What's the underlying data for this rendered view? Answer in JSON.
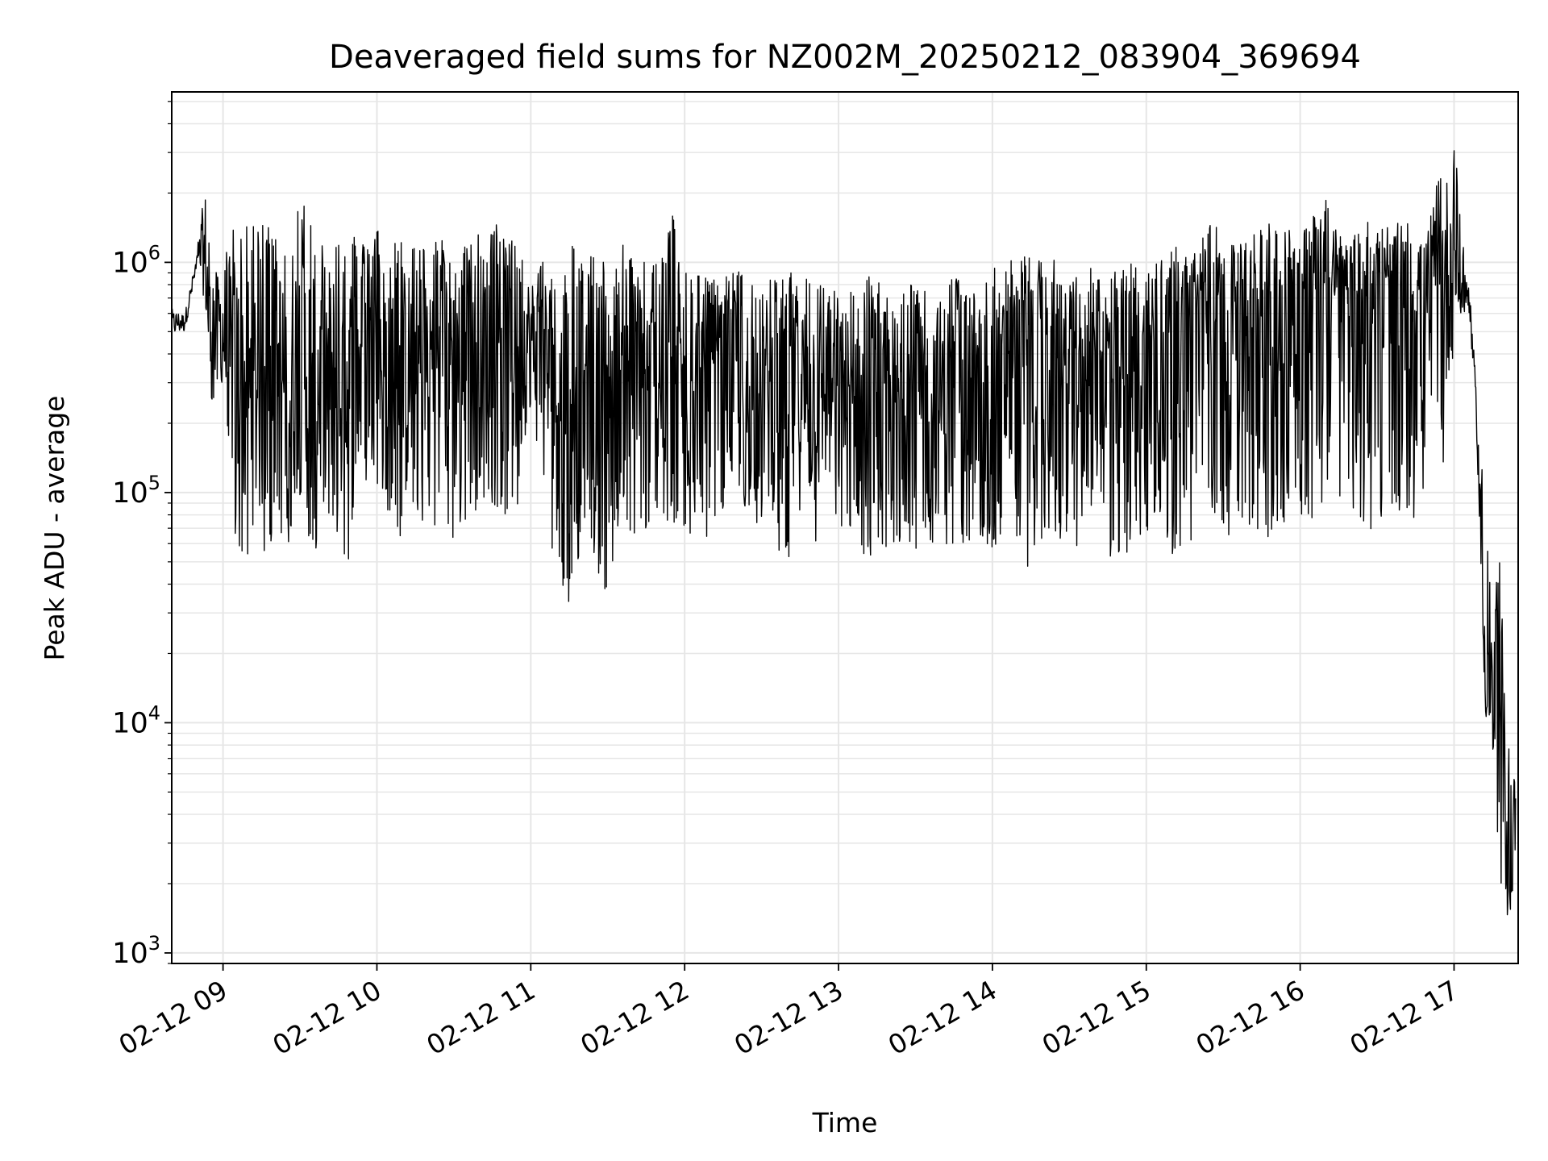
{
  "chart_data": {
    "type": "line",
    "title": "Deaveraged field sums for NZ002M_20250212_083904_369694",
    "xlabel": "Time",
    "ylabel": "Peak ADU - average",
    "yscale": "log",
    "ylim": [
      900,
      5500000
    ],
    "xlim": [
      "2025-02-12 08:40",
      "2025-02-12 17:25"
    ],
    "grid": true,
    "line_color": "#000000",
    "grid_color": "#e6e6e6",
    "x_ticks": [
      {
        "value": "2025-02-12 09:00",
        "label": "02-12 09"
      },
      {
        "value": "2025-02-12 10:00",
        "label": "02-12 10"
      },
      {
        "value": "2025-02-12 11:00",
        "label": "02-12 11"
      },
      {
        "value": "2025-02-12 12:00",
        "label": "02-12 12"
      },
      {
        "value": "2025-02-12 13:00",
        "label": "02-12 13"
      },
      {
        "value": "2025-02-12 14:00",
        "label": "02-12 14"
      },
      {
        "value": "2025-02-12 15:00",
        "label": "02-12 15"
      },
      {
        "value": "2025-02-12 16:00",
        "label": "02-12 16"
      },
      {
        "value": "2025-02-12 17:00",
        "label": "02-12 17"
      }
    ],
    "y_ticks": [
      {
        "value": 1000,
        "base": "10",
        "exp": "3"
      },
      {
        "value": 10000,
        "base": "10",
        "exp": "4"
      },
      {
        "value": 100000,
        "base": "10",
        "exp": "5"
      },
      {
        "value": 1000000,
        "base": "10",
        "exp": "6"
      }
    ],
    "series": [
      {
        "x": [
          "2025-02-12 08:40",
          "2025-02-12 08:45",
          "2025-02-12 08:50",
          "2025-02-12 08:53",
          "2025-02-12 08:55",
          "2025-02-12 08:57",
          "2025-02-12 09:00",
          "2025-02-12 09:05",
          "2025-02-12 09:10",
          "2025-02-12 09:15",
          "2025-02-12 09:20",
          "2025-02-12 09:25",
          "2025-02-12 09:30",
          "2025-02-12 09:35",
          "2025-02-12 09:40",
          "2025-02-12 09:45",
          "2025-02-12 09:50",
          "2025-02-12 09:55",
          "2025-02-12 10:00",
          "2025-02-12 10:05",
          "2025-02-12 10:10",
          "2025-02-12 10:15",
          "2025-02-12 10:20",
          "2025-02-12 10:25",
          "2025-02-12 10:30",
          "2025-02-12 10:35",
          "2025-02-12 10:40",
          "2025-02-12 10:45",
          "2025-02-12 10:50",
          "2025-02-12 10:55",
          "2025-02-12 11:00",
          "2025-02-12 11:05",
          "2025-02-12 11:10",
          "2025-02-12 11:15",
          "2025-02-12 11:20",
          "2025-02-12 11:25",
          "2025-02-12 11:30",
          "2025-02-12 11:35",
          "2025-02-12 11:40",
          "2025-02-12 11:45",
          "2025-02-12 11:50",
          "2025-02-12 11:55",
          "2025-02-12 12:00",
          "2025-02-12 12:05",
          "2025-02-12 12:10",
          "2025-02-12 12:15",
          "2025-02-12 12:20",
          "2025-02-12 12:25",
          "2025-02-12 12:30",
          "2025-02-12 12:35",
          "2025-02-12 12:40",
          "2025-02-12 12:45",
          "2025-02-12 12:50",
          "2025-02-12 12:55",
          "2025-02-12 13:00",
          "2025-02-12 13:05",
          "2025-02-12 13:10",
          "2025-02-12 13:15",
          "2025-02-12 13:20",
          "2025-02-12 13:25",
          "2025-02-12 13:30",
          "2025-02-12 13:35",
          "2025-02-12 13:40",
          "2025-02-12 13:45",
          "2025-02-12 13:50",
          "2025-02-12 13:55",
          "2025-02-12 14:00",
          "2025-02-12 14:05",
          "2025-02-12 14:10",
          "2025-02-12 14:15",
          "2025-02-12 14:20",
          "2025-02-12 14:25",
          "2025-02-12 14:30",
          "2025-02-12 14:35",
          "2025-02-12 14:40",
          "2025-02-12 14:45",
          "2025-02-12 14:50",
          "2025-02-12 14:55",
          "2025-02-12 15:00",
          "2025-02-12 15:05",
          "2025-02-12 15:10",
          "2025-02-12 15:15",
          "2025-02-12 15:20",
          "2025-02-12 15:25",
          "2025-02-12 15:30",
          "2025-02-12 15:35",
          "2025-02-12 15:40",
          "2025-02-12 15:45",
          "2025-02-12 15:50",
          "2025-02-12 15:55",
          "2025-02-12 16:00",
          "2025-02-12 16:05",
          "2025-02-12 16:10",
          "2025-02-12 16:15",
          "2025-02-12 16:20",
          "2025-02-12 16:25",
          "2025-02-12 16:30",
          "2025-02-12 16:35",
          "2025-02-12 16:40",
          "2025-02-12 16:45",
          "2025-02-12 16:50",
          "2025-02-12 16:55",
          "2025-02-12 17:00",
          "2025-02-12 17:03",
          "2025-02-12 17:06",
          "2025-02-12 17:09",
          "2025-02-12 17:12",
          "2025-02-12 17:15",
          "2025-02-12 17:18",
          "2025-02-12 17:21",
          "2025-02-12 17:24"
        ],
        "min": [
          450000,
          480000,
          900000,
          600000,
          170000,
          300000,
          250000,
          60000,
          50000,
          55000,
          52000,
          60000,
          70000,
          48000,
          80000,
          55000,
          50000,
          90000,
          100000,
          80000,
          60000,
          70000,
          65000,
          80000,
          60000,
          70000,
          80000,
          90000,
          80000,
          85000,
          200000,
          70000,
          45000,
          32000,
          60000,
          50000,
          30000,
          65000,
          60000,
          65000,
          60000,
          70000,
          60000,
          70000,
          60000,
          80000,
          70000,
          75000,
          70000,
          60000,
          45000,
          60000,
          55000,
          80000,
          60000,
          55000,
          45000,
          42000,
          48000,
          55000,
          50000,
          60000,
          55000,
          58000,
          60000,
          55000,
          55000,
          60000,
          60000,
          42000,
          65000,
          60000,
          55000,
          60000,
          70000,
          50000,
          45000,
          65000,
          60000,
          80000,
          50000,
          55000,
          60000,
          90000,
          55000,
          80000,
          70000,
          65000,
          60000,
          80000,
          80000,
          70000,
          90000,
          80000,
          70000,
          60000,
          80000,
          70000,
          80000,
          70000,
          90000,
          100000,
          450000,
          500000,
          600000,
          150000,
          10000,
          7000,
          2000,
          1300,
          1700
        ],
        "max": [
          650000,
          600000,
          1150000,
          2700000,
          1100000,
          900000,
          1200000,
          1600000,
          1400000,
          1500000,
          1550000,
          1600000,
          2050000,
          1500000,
          1400000,
          1300000,
          1400000,
          1200000,
          1450000,
          1300000,
          1250000,
          1200000,
          1300000,
          1250000,
          1450000,
          1300000,
          1350000,
          1400000,
          1650000,
          1200000,
          1000000,
          1150000,
          1100000,
          1200000,
          1250000,
          1100000,
          1000000,
          1200000,
          1150000,
          1050000,
          1000000,
          1700000,
          1000000,
          900000,
          950000,
          850000,
          950000,
          900000,
          950000,
          850000,
          1000000,
          900000,
          850000,
          800000,
          750000,
          800000,
          900000,
          850000,
          800000,
          850000,
          850000,
          800000,
          900000,
          850000,
          900000,
          850000,
          950000,
          1000000,
          1100000,
          1200000,
          1150000,
          1000000,
          900000,
          950000,
          1000000,
          1050000,
          950000,
          1000000,
          900000,
          1050000,
          1200000,
          1200000,
          1300000,
          1550000,
          1300000,
          1400000,
          1400000,
          1500000,
          1500000,
          1550000,
          1500000,
          1600000,
          2200000,
          1500000,
          1450000,
          1600000,
          1400000,
          1500000,
          1500000,
          1450000,
          1450000,
          2700000,
          3800000,
          1500000,
          800000,
          250000,
          100000,
          30000,
          55000,
          8000,
          6500
        ],
        "center": [
          550000,
          560000,
          1000000,
          1000000,
          500000,
          600000,
          500000,
          300000,
          250000,
          300000,
          280000,
          350000,
          350000,
          300000,
          300000,
          280000,
          300000,
          400000,
          450000,
          400000,
          350000,
          380000,
          400000,
          420000,
          450000,
          480000,
          500000,
          520000,
          550000,
          450000,
          500000,
          400000,
          350000,
          380000,
          420000,
          350000,
          320000,
          350000,
          330000,
          300000,
          280000,
          350000,
          300000,
          300000,
          290000,
          300000,
          300000,
          280000,
          300000,
          280000,
          300000,
          320000,
          300000,
          300000,
          290000,
          280000,
          270000,
          260000,
          250000,
          260000,
          280000,
          300000,
          280000,
          290000,
          300000,
          280000,
          300000,
          350000,
          380000,
          400000,
          380000,
          350000,
          340000,
          360000,
          380000,
          400000,
          350000,
          400000,
          420000,
          450000,
          500000,
          550000,
          600000,
          650000,
          600000,
          650000,
          650000,
          680000,
          700000,
          700000,
          720000,
          700000,
          750000,
          700000,
          680000,
          700000,
          700000,
          720000,
          700000,
          700000,
          700000,
          800000,
          1000000,
          800000,
          700000,
          200000,
          15000,
          12000,
          5000,
          3500,
          4000
        ]
      }
    ]
  }
}
